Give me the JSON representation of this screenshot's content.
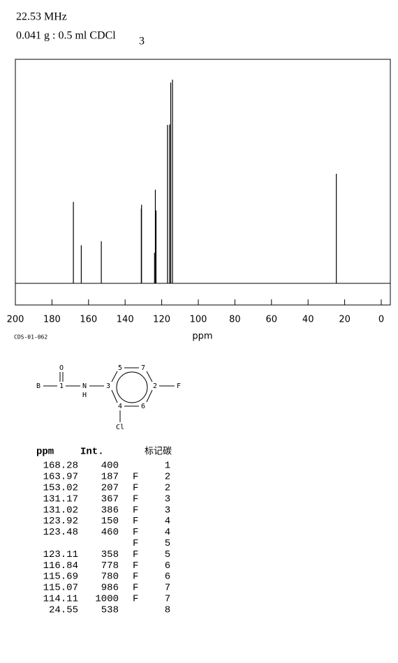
{
  "header": {
    "frequency": "22.53 MHz",
    "sample": "0.041 g : 0.5 ml CDCl",
    "sample_sub": "3"
  },
  "chart_data": {
    "type": "stick",
    "x": [
      168.28,
      163.97,
      153.02,
      131.17,
      131.02,
      123.92,
      123.48,
      123.11,
      116.84,
      115.69,
      115.07,
      114.11,
      24.55
    ],
    "values": [
      400,
      187,
      207,
      367,
      386,
      150,
      460,
      358,
      778,
      780,
      986,
      1000,
      538
    ],
    "xlim": [
      200,
      0
    ],
    "ylim": [
      0,
      1100
    ],
    "xticks": [
      200,
      180,
      160,
      140,
      120,
      100,
      80,
      60,
      40,
      20,
      0
    ],
    "xlabel": "ppm",
    "color": "#000000"
  },
  "code": "CDS-01-062",
  "structure": {
    "labels": [
      "B",
      "O",
      "1",
      "N",
      "H",
      "3",
      "5",
      "7",
      "2",
      "F",
      "4",
      "6",
      "Cl"
    ]
  },
  "table": {
    "columns": [
      "ppm",
      "Int.",
      "标记碳"
    ],
    "rows": [
      [
        "168.28",
        "400",
        "",
        "1"
      ],
      [
        "163.97",
        "187",
        "F",
        "2"
      ],
      [
        "153.02",
        "207",
        "F",
        "2"
      ],
      [
        "131.17",
        "367",
        "F",
        "3"
      ],
      [
        "131.02",
        "386",
        "F",
        "3"
      ],
      [
        "123.92",
        "150",
        "F",
        "4"
      ],
      [
        "123.48",
        "460",
        "F",
        "4"
      ],
      [
        null,
        null,
        "F",
        "5"
      ],
      [
        "123.11",
        "358",
        "F",
        "5"
      ],
      [
        "116.84",
        "778",
        "F",
        "6"
      ],
      [
        "115.69",
        "780",
        "F",
        "6"
      ],
      [
        "115.07",
        "986",
        "F",
        "7"
      ],
      [
        "114.11",
        "1000",
        "F",
        "7"
      ],
      [
        "24.55",
        "538",
        "",
        "8"
      ]
    ]
  }
}
